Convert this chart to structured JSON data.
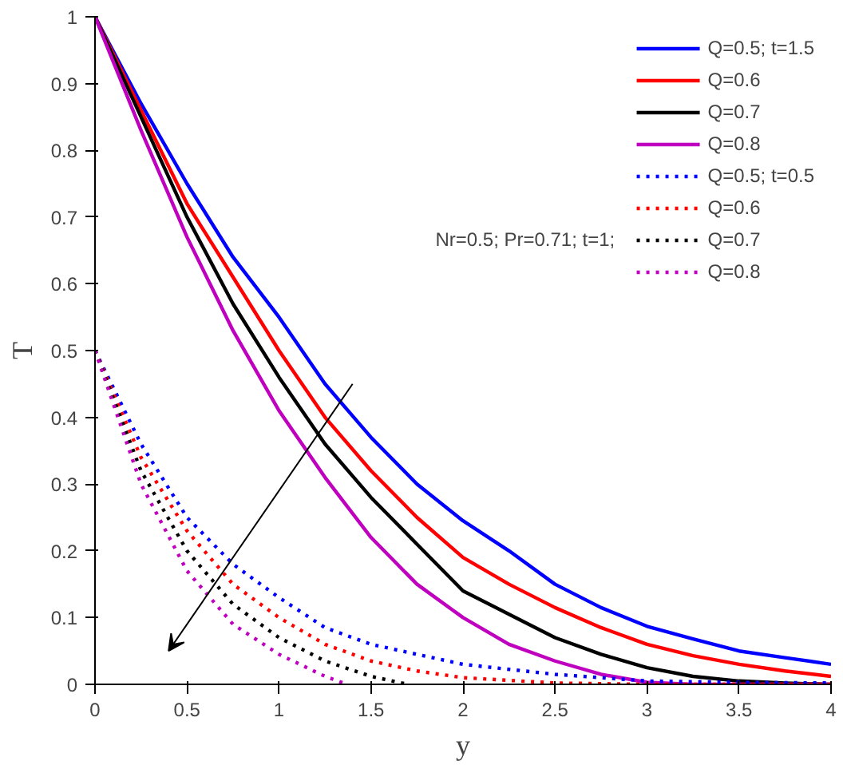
{
  "chart_data": {
    "type": "line",
    "xlabel": "y",
    "ylabel": "T",
    "xlim": [
      0,
      4
    ],
    "ylim": [
      0,
      1
    ],
    "xticks": [
      0,
      0.5,
      1,
      1.5,
      2,
      2.5,
      3,
      3.5,
      4
    ],
    "yticks": [
      0,
      0.1,
      0.2,
      0.3,
      0.4,
      0.5,
      0.6,
      0.7,
      0.8,
      0.9,
      1
    ],
    "grid": false,
    "legend": "top right",
    "marker": "none",
    "annotations": [
      "Nr=0.5; Pr=0.71; t=1;"
    ],
    "series": [
      {
        "name": "Q=0.5; t=1.5",
        "color": "#0000ff",
        "line_style": "solid",
        "x": [
          0,
          0.25,
          0.5,
          0.75,
          1,
          1.25,
          1.5,
          1.75,
          2,
          2.25,
          2.5,
          2.75,
          3,
          3.25,
          3.5,
          3.75,
          4
        ],
        "values": [
          1,
          0.87,
          0.75,
          0.64,
          0.55,
          0.45,
          0.37,
          0.3,
          0.245,
          0.2,
          0.15,
          0.115,
          0.087,
          0.068,
          0.05,
          0.04,
          0.03
        ]
      },
      {
        "name": "Q=0.6",
        "color": "#ff0000",
        "line_style": "solid",
        "x": [
          0,
          0.25,
          0.5,
          0.75,
          1,
          1.25,
          1.5,
          1.75,
          2,
          2.25,
          2.5,
          2.75,
          3,
          3.25,
          3.5,
          3.75,
          4
        ],
        "values": [
          1,
          0.86,
          0.72,
          0.61,
          0.5,
          0.4,
          0.32,
          0.25,
          0.19,
          0.15,
          0.115,
          0.085,
          0.06,
          0.043,
          0.03,
          0.02,
          0.012
        ]
      },
      {
        "name": "Q=0.7",
        "color": "#000000",
        "line_style": "solid",
        "x": [
          0,
          0.25,
          0.5,
          0.75,
          1,
          1.25,
          1.5,
          1.75,
          2,
          2.25,
          2.5,
          2.75,
          3,
          3.25,
          3.5,
          3.75,
          4
        ],
        "values": [
          1,
          0.85,
          0.7,
          0.57,
          0.46,
          0.36,
          0.28,
          0.21,
          0.14,
          0.105,
          0.07,
          0.045,
          0.025,
          0.012,
          0.005,
          0.002,
          0
        ]
      },
      {
        "name": "Q=0.8",
        "color": "#bf00bf",
        "line_style": "solid",
        "x": [
          0,
          0.25,
          0.5,
          0.75,
          1,
          1.25,
          1.5,
          1.75,
          2,
          2.25,
          2.5,
          2.75,
          3,
          3.25,
          3.5,
          3.75,
          4
        ],
        "values": [
          1,
          0.83,
          0.67,
          0.53,
          0.41,
          0.31,
          0.22,
          0.15,
          0.1,
          0.06,
          0.035,
          0.015,
          0.003,
          0,
          0,
          0,
          0
        ]
      },
      {
        "name": "Q=0.5; t=0.5",
        "color": "#0000ff",
        "line_style": "dotted",
        "x": [
          0,
          0.25,
          0.5,
          0.75,
          1,
          1.25,
          1.5,
          1.75,
          2,
          2.5,
          3,
          3.5,
          4
        ],
        "values": [
          0.5,
          0.36,
          0.25,
          0.18,
          0.13,
          0.085,
          0.06,
          0.045,
          0.03,
          0.015,
          0.005,
          0.003,
          0.002
        ]
      },
      {
        "name": "Q=0.6",
        "color": "#ff0000",
        "line_style": "dotted",
        "x": [
          0,
          0.25,
          0.5,
          0.75,
          1,
          1.25,
          1.5,
          1.75,
          2,
          2.5,
          3,
          4
        ],
        "values": [
          0.5,
          0.34,
          0.23,
          0.15,
          0.1,
          0.06,
          0.035,
          0.02,
          0.01,
          0.002,
          0,
          0
        ]
      },
      {
        "name": "Q=0.7",
        "color": "#000000",
        "line_style": "dotted",
        "x": [
          0,
          0.25,
          0.5,
          0.75,
          1,
          1.25,
          1.5,
          1.7
        ],
        "values": [
          0.5,
          0.32,
          0.2,
          0.12,
          0.07,
          0.035,
          0.012,
          0
        ]
      },
      {
        "name": "Q=0.8",
        "color": "#bf00bf",
        "line_style": "dotted",
        "x": [
          0,
          0.25,
          0.5,
          0.75,
          1,
          1.25,
          1.37
        ],
        "values": [
          0.5,
          0.3,
          0.17,
          0.09,
          0.045,
          0.012,
          0
        ]
      }
    ]
  }
}
